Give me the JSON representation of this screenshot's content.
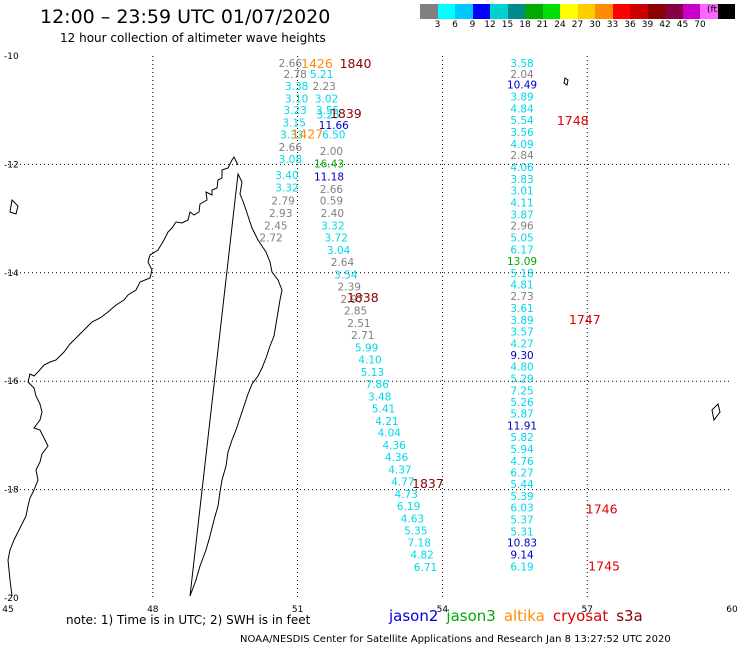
{
  "header": {
    "title": "12:00 – 23:59 UTC 01/07/2020",
    "subtitle": "12 hour collection of altimeter wave heights"
  },
  "legend": {
    "colors": [
      "#808080",
      "#00ffff",
      "#00c8ff",
      "#0000ff",
      "#00d2d2",
      "#008a8a",
      "#00aa00",
      "#00e000",
      "#ffff00",
      "#ffcc00",
      "#ff8c00",
      "#ff0000",
      "#cc0000",
      "#8b0000",
      "#880044",
      "#cc00cc",
      "#ff66ff",
      "#000000"
    ],
    "labels": [
      "3",
      "6",
      "9",
      "12",
      "15",
      "18",
      "21",
      "24",
      "27",
      "30",
      "33",
      "36",
      "39",
      "42",
      "45",
      "70"
    ],
    "unit": "(ft)"
  },
  "axes": {
    "lon_ticks": [
      "45",
      "48",
      "51",
      "54",
      "57",
      "60"
    ],
    "lat_ticks": [
      "-10",
      "-12",
      "-14",
      "-16",
      "-18",
      "-20"
    ]
  },
  "map_data": {
    "lon_range": [
      45,
      60
    ],
    "lat_range": [
      -20,
      -10
    ],
    "grid": "dotted",
    "swh_colors": {
      "gray": "#808080",
      "cyan": "#00d8e8",
      "navy": "#0000c8",
      "green": "#00aa00"
    },
    "passes": [
      {
        "satellite": "jason2",
        "points": [
          {
            "lon": 50.85,
            "lat": -10.13,
            "v": "2.66",
            "c": "gray"
          },
          {
            "lon": 50.95,
            "lat": -10.33,
            "v": "2.78",
            "c": "gray"
          },
          {
            "lon": 51.5,
            "lat": -10.33,
            "v": "5.21",
            "c": "cyan"
          },
          {
            "lon": 50.98,
            "lat": -10.55,
            "v": "3.38",
            "c": "cyan"
          },
          {
            "lon": 51.55,
            "lat": -10.55,
            "v": "2.23",
            "c": "gray"
          },
          {
            "lon": 50.98,
            "lat": -10.78,
            "v": "3.10",
            "c": "cyan"
          },
          {
            "lon": 51.6,
            "lat": -10.78,
            "v": "3.02",
            "c": "cyan"
          },
          {
            "lon": 50.95,
            "lat": -11.0,
            "v": "3.23",
            "c": "cyan"
          },
          {
            "lon": 51.62,
            "lat": -11.0,
            "v": "3.55",
            "c": "cyan"
          },
          {
            "lon": 50.93,
            "lat": -11.23,
            "v": "3.15",
            "c": "cyan"
          },
          {
            "lon": 51.63,
            "lat": -11.08,
            "v": "3.25",
            "c": "cyan"
          },
          {
            "lon": 51.75,
            "lat": -11.27,
            "v": "11.66",
            "c": "navy"
          },
          {
            "lon": 50.88,
            "lat": -11.45,
            "v": "3.33",
            "c": "cyan"
          },
          {
            "lon": 51.75,
            "lat": -11.45,
            "v": "6.50",
            "c": "cyan"
          },
          {
            "lon": 50.85,
            "lat": -11.68,
            "v": "2.66",
            "c": "gray"
          },
          {
            "lon": 51.7,
            "lat": -11.75,
            "v": "2.00",
            "c": "gray"
          },
          {
            "lon": 50.85,
            "lat": -11.9,
            "v": "3.08",
            "c": "cyan"
          },
          {
            "lon": 51.65,
            "lat": -11.98,
            "v": "16.43",
            "c": "green"
          },
          {
            "lon": 50.78,
            "lat": -12.2,
            "v": "3.40",
            "c": "cyan"
          },
          {
            "lon": 51.65,
            "lat": -12.22,
            "v": "11.18",
            "c": "navy"
          },
          {
            "lon": 50.78,
            "lat": -12.43,
            "v": "3.32",
            "c": "cyan"
          },
          {
            "lon": 51.7,
            "lat": -12.45,
            "v": "2.66",
            "c": "gray"
          },
          {
            "lon": 50.7,
            "lat": -12.67,
            "v": "2.79",
            "c": "gray"
          },
          {
            "lon": 51.7,
            "lat": -12.67,
            "v": "0.59",
            "c": "gray"
          },
          {
            "lon": 50.65,
            "lat": -12.9,
            "v": "2.93",
            "c": "gray"
          },
          {
            "lon": 51.72,
            "lat": -12.9,
            "v": "2.40",
            "c": "gray"
          },
          {
            "lon": 50.55,
            "lat": -13.13,
            "v": "2.45",
            "c": "gray"
          },
          {
            "lon": 51.73,
            "lat": -13.13,
            "v": "3.32",
            "c": "cyan"
          },
          {
            "lon": 50.45,
            "lat": -13.35,
            "v": "2.72",
            "c": "gray"
          },
          {
            "lon": 51.8,
            "lat": -13.35,
            "v": "3.72",
            "c": "cyan"
          },
          {
            "lon": 51.85,
            "lat": -13.58,
            "v": "3.04",
            "c": "cyan"
          },
          {
            "lon": 51.93,
            "lat": -13.8,
            "v": "2.64",
            "c": "gray"
          },
          {
            "lon": 52.0,
            "lat": -14.03,
            "v": "3.54",
            "c": "cyan"
          },
          {
            "lon": 52.07,
            "lat": -14.25,
            "v": "2.39",
            "c": "gray"
          },
          {
            "lon": 52.13,
            "lat": -14.48,
            "v": "2.97",
            "c": "gray"
          },
          {
            "lon": 52.2,
            "lat": -14.7,
            "v": "2.85",
            "c": "gray"
          },
          {
            "lon": 52.27,
            "lat": -14.93,
            "v": "2.51",
            "c": "gray"
          },
          {
            "lon": 52.35,
            "lat": -15.15,
            "v": "2.71",
            "c": "gray"
          },
          {
            "lon": 52.43,
            "lat": -15.38,
            "v": "5.99",
            "c": "cyan"
          },
          {
            "lon": 52.5,
            "lat": -15.6,
            "v": "4.10",
            "c": "cyan"
          },
          {
            "lon": 52.55,
            "lat": -15.83,
            "v": "5.13",
            "c": "cyan"
          },
          {
            "lon": 52.65,
            "lat": -16.05,
            "v": "7.86",
            "c": "cyan"
          },
          {
            "lon": 52.7,
            "lat": -16.28,
            "v": "3.48",
            "c": "cyan"
          },
          {
            "lon": 52.78,
            "lat": -16.5,
            "v": "5.41",
            "c": "cyan"
          },
          {
            "lon": 52.85,
            "lat": -16.73,
            "v": "4.21",
            "c": "cyan"
          },
          {
            "lon": 52.9,
            "lat": -16.95,
            "v": "4.04",
            "c": "cyan"
          },
          {
            "lon": 53.0,
            "lat": -17.18,
            "v": "4.36",
            "c": "cyan"
          },
          {
            "lon": 53.05,
            "lat": -17.4,
            "v": "4.36",
            "c": "cyan"
          },
          {
            "lon": 53.12,
            "lat": -17.63,
            "v": "4.37",
            "c": "cyan"
          },
          {
            "lon": 53.18,
            "lat": -17.85,
            "v": "4.77",
            "c": "cyan"
          },
          {
            "lon": 53.25,
            "lat": -18.08,
            "v": "4.73",
            "c": "cyan"
          },
          {
            "lon": 53.3,
            "lat": -18.3,
            "v": "6.19",
            "c": "cyan"
          },
          {
            "lon": 53.38,
            "lat": -18.53,
            "v": "4.63",
            "c": "cyan"
          },
          {
            "lon": 53.45,
            "lat": -18.75,
            "v": "5.35",
            "c": "cyan"
          },
          {
            "lon": 53.52,
            "lat": -18.98,
            "v": "7.18",
            "c": "cyan"
          },
          {
            "lon": 53.58,
            "lat": -19.2,
            "v": "4.82",
            "c": "cyan"
          },
          {
            "lon": 53.65,
            "lat": -19.43,
            "v": "6.71",
            "c": "cyan"
          }
        ],
        "times": [
          {
            "lon": 51.4,
            "lat": -10.13,
            "t": "1426",
            "color": "#ff8c00"
          },
          {
            "lon": 52.2,
            "lat": -10.13,
            "t": "1840",
            "color": "#8b0000"
          },
          {
            "lon": 52.0,
            "lat": -11.05,
            "t": "1839",
            "color": "#8b0000"
          },
          {
            "lon": 51.2,
            "lat": -11.43,
            "t": "1427",
            "color": "#ff8c00"
          },
          {
            "lon": 52.35,
            "lat": -14.45,
            "t": "1838",
            "color": "#8b0000"
          },
          {
            "lon": 53.7,
            "lat": -17.88,
            "t": "1837",
            "color": "#8b0000"
          }
        ]
      },
      {
        "satellite": "cryosat",
        "points": [
          {
            "lon": 55.65,
            "lat": -10.13,
            "v": "3.58",
            "c": "cyan"
          },
          {
            "lon": 55.65,
            "lat": -10.33,
            "v": "2.04",
            "c": "gray"
          },
          {
            "lon": 55.65,
            "lat": -10.53,
            "v": "10.49",
            "c": "navy"
          },
          {
            "lon": 55.65,
            "lat": -10.75,
            "v": "3.89",
            "c": "cyan"
          },
          {
            "lon": 55.65,
            "lat": -10.97,
            "v": "4.84",
            "c": "cyan"
          },
          {
            "lon": 55.65,
            "lat": -11.18,
            "v": "5.54",
            "c": "cyan"
          },
          {
            "lon": 55.65,
            "lat": -11.4,
            "v": "3.56",
            "c": "cyan"
          },
          {
            "lon": 55.65,
            "lat": -11.62,
            "v": "4.09",
            "c": "cyan"
          },
          {
            "lon": 55.65,
            "lat": -11.83,
            "v": "2.84",
            "c": "gray"
          },
          {
            "lon": 55.65,
            "lat": -12.05,
            "v": "4.06",
            "c": "cyan"
          },
          {
            "lon": 55.65,
            "lat": -12.27,
            "v": "3.83",
            "c": "cyan"
          },
          {
            "lon": 55.65,
            "lat": -12.48,
            "v": "3.01",
            "c": "cyan"
          },
          {
            "lon": 55.65,
            "lat": -12.7,
            "v": "4.11",
            "c": "cyan"
          },
          {
            "lon": 55.65,
            "lat": -12.92,
            "v": "3.87",
            "c": "cyan"
          },
          {
            "lon": 55.65,
            "lat": -13.13,
            "v": "2.96",
            "c": "gray"
          },
          {
            "lon": 55.65,
            "lat": -13.35,
            "v": "5.05",
            "c": "cyan"
          },
          {
            "lon": 55.65,
            "lat": -13.57,
            "v": "6.17",
            "c": "cyan"
          },
          {
            "lon": 55.65,
            "lat": -13.78,
            "v": "13.09",
            "c": "green"
          },
          {
            "lon": 55.65,
            "lat": -14.0,
            "v": "5.18",
            "c": "cyan"
          },
          {
            "lon": 55.65,
            "lat": -14.22,
            "v": "4.81",
            "c": "cyan"
          },
          {
            "lon": 55.65,
            "lat": -14.43,
            "v": "2.73",
            "c": "gray"
          },
          {
            "lon": 55.65,
            "lat": -14.65,
            "v": "3.61",
            "c": "cyan"
          },
          {
            "lon": 55.65,
            "lat": -14.87,
            "v": "3.89",
            "c": "cyan"
          },
          {
            "lon": 55.65,
            "lat": -15.08,
            "v": "3.57",
            "c": "cyan"
          },
          {
            "lon": 55.65,
            "lat": -15.3,
            "v": "4.27",
            "c": "cyan"
          },
          {
            "lon": 55.65,
            "lat": -15.52,
            "v": "9.30",
            "c": "navy"
          },
          {
            "lon": 55.65,
            "lat": -15.73,
            "v": "4.80",
            "c": "cyan"
          },
          {
            "lon": 55.65,
            "lat": -15.95,
            "v": "5.29",
            "c": "cyan"
          },
          {
            "lon": 55.65,
            "lat": -16.17,
            "v": "7.25",
            "c": "cyan"
          },
          {
            "lon": 55.65,
            "lat": -16.38,
            "v": "5.26",
            "c": "cyan"
          },
          {
            "lon": 55.65,
            "lat": -16.6,
            "v": "5.87",
            "c": "cyan"
          },
          {
            "lon": 55.65,
            "lat": -16.82,
            "v": "11.91",
            "c": "navy"
          },
          {
            "lon": 55.65,
            "lat": -17.03,
            "v": "5.82",
            "c": "cyan"
          },
          {
            "lon": 55.65,
            "lat": -17.25,
            "v": "5.94",
            "c": "cyan"
          },
          {
            "lon": 55.65,
            "lat": -17.47,
            "v": "4.76",
            "c": "cyan"
          },
          {
            "lon": 55.65,
            "lat": -17.68,
            "v": "6.27",
            "c": "cyan"
          },
          {
            "lon": 55.65,
            "lat": -17.9,
            "v": "5.44",
            "c": "cyan"
          },
          {
            "lon": 55.65,
            "lat": -18.12,
            "v": "5.39",
            "c": "cyan"
          },
          {
            "lon": 55.65,
            "lat": -18.33,
            "v": "6.03",
            "c": "cyan"
          },
          {
            "lon": 55.65,
            "lat": -18.55,
            "v": "5.37",
            "c": "cyan"
          },
          {
            "lon": 55.65,
            "lat": -18.77,
            "v": "5.31",
            "c": "cyan"
          },
          {
            "lon": 55.65,
            "lat": -18.98,
            "v": "10.83",
            "c": "navy"
          },
          {
            "lon": 55.65,
            "lat": -19.2,
            "v": "9.14",
            "c": "navy"
          },
          {
            "lon": 55.65,
            "lat": -19.42,
            "v": "6.19",
            "c": "cyan"
          }
        ],
        "times": [
          {
            "lon": 56.7,
            "lat": -11.18,
            "t": "1748",
            "color": "#dd0000"
          },
          {
            "lon": 56.95,
            "lat": -14.85,
            "t": "1747",
            "color": "#dd0000"
          },
          {
            "lon": 57.3,
            "lat": -18.35,
            "t": "1746",
            "color": "#dd0000"
          },
          {
            "lon": 57.35,
            "lat": -19.4,
            "t": "1745",
            "color": "#dd0000"
          }
        ]
      }
    ]
  },
  "footer": {
    "note": "note:  1) Time is in UTC;  2) SWH is in feet",
    "satellites": [
      {
        "name": "jason2",
        "color": "#0000dd"
      },
      {
        "name": "jason3",
        "color": "#00aa00"
      },
      {
        "name": "altika",
        "color": "#ff8c00"
      },
      {
        "name": "cryosat",
        "color": "#dd0000"
      },
      {
        "name": "s3a",
        "color": "#8b0000"
      }
    ],
    "credit": "NOAA/NESDIS Center for Satellite Applications and Research   Jan  8 13:27:52 UTC 2020"
  }
}
